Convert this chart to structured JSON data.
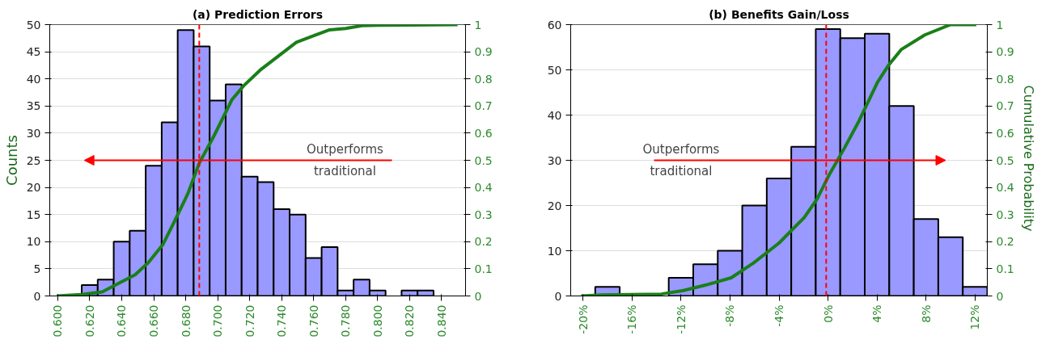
{
  "chart_data": [
    {
      "type": "histogram",
      "title": "(a) Prediction Errors",
      "ylabel": "Counts",
      "bins": [
        0.615,
        0.625,
        0.635,
        0.645,
        0.655,
        0.665,
        0.675,
        0.685,
        0.695,
        0.705,
        0.715,
        0.725,
        0.735,
        0.745,
        0.755,
        0.765,
        0.775,
        0.785,
        0.795,
        0.805,
        0.815,
        0.825,
        0.835
      ],
      "values": [
        2,
        3,
        10,
        12,
        24,
        32,
        49,
        46,
        36,
        39,
        22,
        21,
        16,
        15,
        7,
        9,
        1,
        3,
        1,
        0,
        1,
        1
      ],
      "color": "#9999ff",
      "series": [
        {
          "type": "line",
          "axis": "y2",
          "color": "#1a7f1a",
          "x": [
            0.5994,
            0.6148,
            0.6278,
            0.636,
            0.6484,
            0.6566,
            0.6658,
            0.673,
            0.6813,
            0.6885,
            0.6977,
            0.709,
            0.7163,
            0.7265,
            0.739,
            0.7492,
            0.7595,
            0.77,
            0.78,
            0.7903,
            0.8006,
            0.85
          ],
          "values": [
            0,
            0.005,
            0.015,
            0.04,
            0.078,
            0.123,
            0.19,
            0.275,
            0.376,
            0.49,
            0.59,
            0.724,
            0.775,
            0.832,
            0.889,
            0.935,
            0.958,
            0.981,
            0.986,
            0.996,
            0.998,
            1
          ]
        }
      ],
      "xlim": [
        0.595,
        0.855
      ],
      "xticks": [
        {
          "value": 0.6,
          "label": "0.600"
        },
        {
          "value": 0.62,
          "label": "0.620"
        },
        {
          "value": 0.64,
          "label": "0.640"
        },
        {
          "value": 0.66,
          "label": "0.660"
        },
        {
          "value": 0.68,
          "label": "0.680"
        },
        {
          "value": 0.7,
          "label": "0.700"
        },
        {
          "value": 0.72,
          "label": "0.720"
        },
        {
          "value": 0.74,
          "label": "0.740"
        },
        {
          "value": 0.76,
          "label": "0.760"
        },
        {
          "value": 0.78,
          "label": "0.780"
        },
        {
          "value": 0.8,
          "label": "0.800"
        },
        {
          "value": 0.82,
          "label": "0.820"
        },
        {
          "value": 0.84,
          "label": "0.840"
        }
      ],
      "ylim": [
        0,
        50
      ],
      "yticks": [
        0,
        5,
        10,
        15,
        20,
        25,
        30,
        35,
        40,
        45,
        50
      ],
      "y2lim": [
        0,
        1
      ],
      "y2ticks": [
        0,
        0.1,
        0.2,
        0.3,
        0.4,
        0.5,
        0.6,
        0.7,
        0.8,
        0.9,
        1
      ],
      "ref_lines": [
        {
          "axis": "x",
          "value": 0.6885,
          "color": "#ff0000",
          "line_style": "dashed"
        }
      ],
      "annotations": [
        "Outperforms\ntraditional"
      ],
      "grid": "y"
    },
    {
      "type": "histogram",
      "title": "(b) Benefits Gain/Loss",
      "y2label": "Cumulative  Probability",
      "bins": [
        -19,
        -17,
        -15,
        -13,
        -11,
        -9,
        -7,
        -5,
        -3,
        -1,
        1,
        3,
        5,
        7,
        9,
        11,
        13
      ],
      "values": [
        2,
        0,
        0,
        4,
        7,
        10,
        20,
        26,
        33,
        59,
        57,
        58,
        42,
        17,
        13,
        2
      ],
      "color": "#9999ff",
      "series": [
        {
          "type": "line",
          "axis": "y2",
          "color": "#1a7f1a",
          "x": [
            -20.15,
            -18.4,
            -13.6,
            -11.8,
            -10,
            -7.9,
            -6.1,
            -4,
            -1.94,
            -0.9,
            0.15,
            1.34,
            2.54,
            4.03,
            4.9,
            5.97,
            7.9,
            10,
            12.1
          ],
          "values": [
            0,
            0.004,
            0.007,
            0.02,
            0.04,
            0.067,
            0.121,
            0.195,
            0.289,
            0.357,
            0.451,
            0.545,
            0.646,
            0.787,
            0.848,
            0.908,
            0.962,
            1,
            1
          ]
        }
      ],
      "xlim": [
        -21,
        13
      ],
      "xticks": [
        {
          "value": -20,
          "label": "-20%"
        },
        {
          "value": -16,
          "label": "-16%"
        },
        {
          "value": -12,
          "label": "-12%"
        },
        {
          "value": -8,
          "label": "-8%"
        },
        {
          "value": -4,
          "label": "-4%"
        },
        {
          "value": 0,
          "label": "0%"
        },
        {
          "value": 4,
          "label": "4%"
        },
        {
          "value": 8,
          "label": "8%"
        },
        {
          "value": 12,
          "label": "12%"
        }
      ],
      "ylim": [
        0,
        60
      ],
      "yticks": [
        0,
        10,
        20,
        30,
        40,
        50,
        60
      ],
      "y2lim": [
        0,
        1
      ],
      "y2ticks": [
        0,
        0.1,
        0.2,
        0.3,
        0.4,
        0.5,
        0.6,
        0.7,
        0.8,
        0.9,
        1
      ],
      "ref_lines": [
        {
          "axis": "x",
          "value": -0.15,
          "color": "#ff0000",
          "line_style": "dashed"
        }
      ],
      "annotations": [
        "Outperforms\ntraditional"
      ],
      "grid": "y"
    }
  ]
}
